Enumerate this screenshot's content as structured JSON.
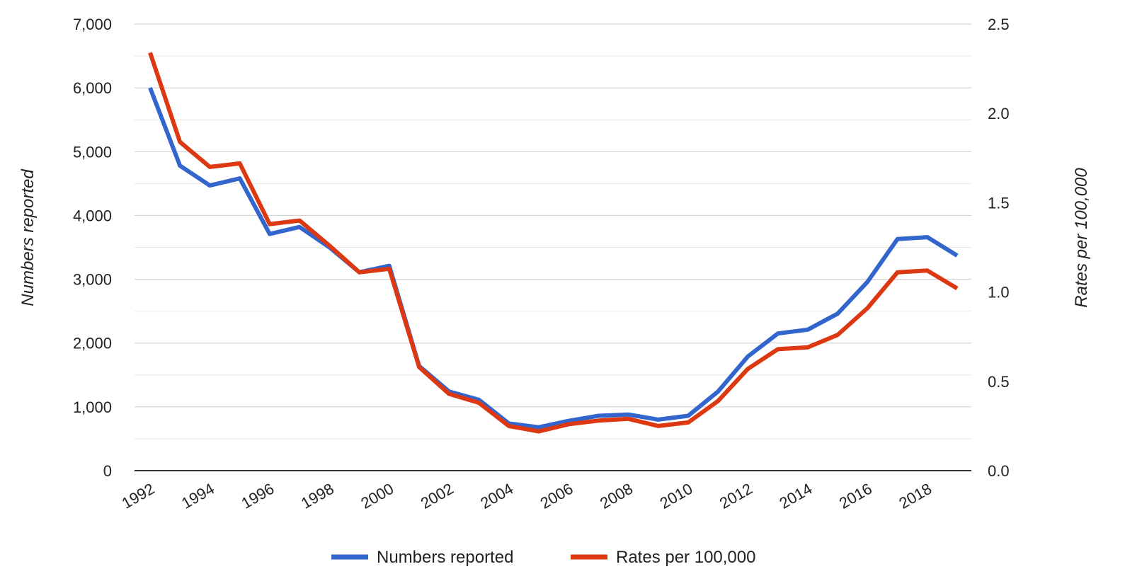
{
  "chart_data": {
    "type": "line",
    "xlabel": "",
    "ylabel_left": "Numbers reported",
    "ylabel_right": "Rates per 100,000",
    "x": [
      1992,
      1993,
      1994,
      1995,
      1996,
      1997,
      1998,
      1999,
      2000,
      2001,
      2002,
      2003,
      2004,
      2005,
      2006,
      2007,
      2008,
      2009,
      2010,
      2011,
      2012,
      2013,
      2014,
      2015,
      2016,
      2017,
      2018,
      2019
    ],
    "x_tick_labels": [
      "1992",
      "1994",
      "1996",
      "1998",
      "2000",
      "2002",
      "2004",
      "2006",
      "2008",
      "2010",
      "2012",
      "2014",
      "2016",
      "2018"
    ],
    "ylim_left": [
      0,
      7000
    ],
    "ylim_right": [
      0,
      2.5
    ],
    "y_left_ticks": [
      "0",
      "1,000",
      "2,000",
      "3,000",
      "4,000",
      "5,000",
      "6,000",
      "7,000"
    ],
    "y_right_ticks": [
      "0.0",
      "0.5",
      "1.0",
      "1.5",
      "2.0",
      "2.5"
    ],
    "grid": true,
    "legend_position": "bottom-center",
    "series": [
      {
        "name": "Numbers reported",
        "axis": "left",
        "color": "#3366cc",
        "values": [
          6000,
          4780,
          4470,
          4580,
          3710,
          3820,
          3500,
          3110,
          3210,
          1640,
          1240,
          1110,
          740,
          680,
          780,
          860,
          880,
          800,
          860,
          1240,
          1790,
          2150,
          2210,
          2460,
          2960,
          3630,
          3660,
          3370
        ]
      },
      {
        "name": "Rates per 100,000",
        "axis": "right",
        "color": "#dc3912",
        "values": [
          2.34,
          1.84,
          1.7,
          1.72,
          1.38,
          1.4,
          1.26,
          1.11,
          1.13,
          0.58,
          0.43,
          0.38,
          0.25,
          0.22,
          0.26,
          0.28,
          0.29,
          0.25,
          0.27,
          0.39,
          0.57,
          0.68,
          0.69,
          0.76,
          0.91,
          1.11,
          1.12,
          1.02
        ]
      }
    ]
  }
}
